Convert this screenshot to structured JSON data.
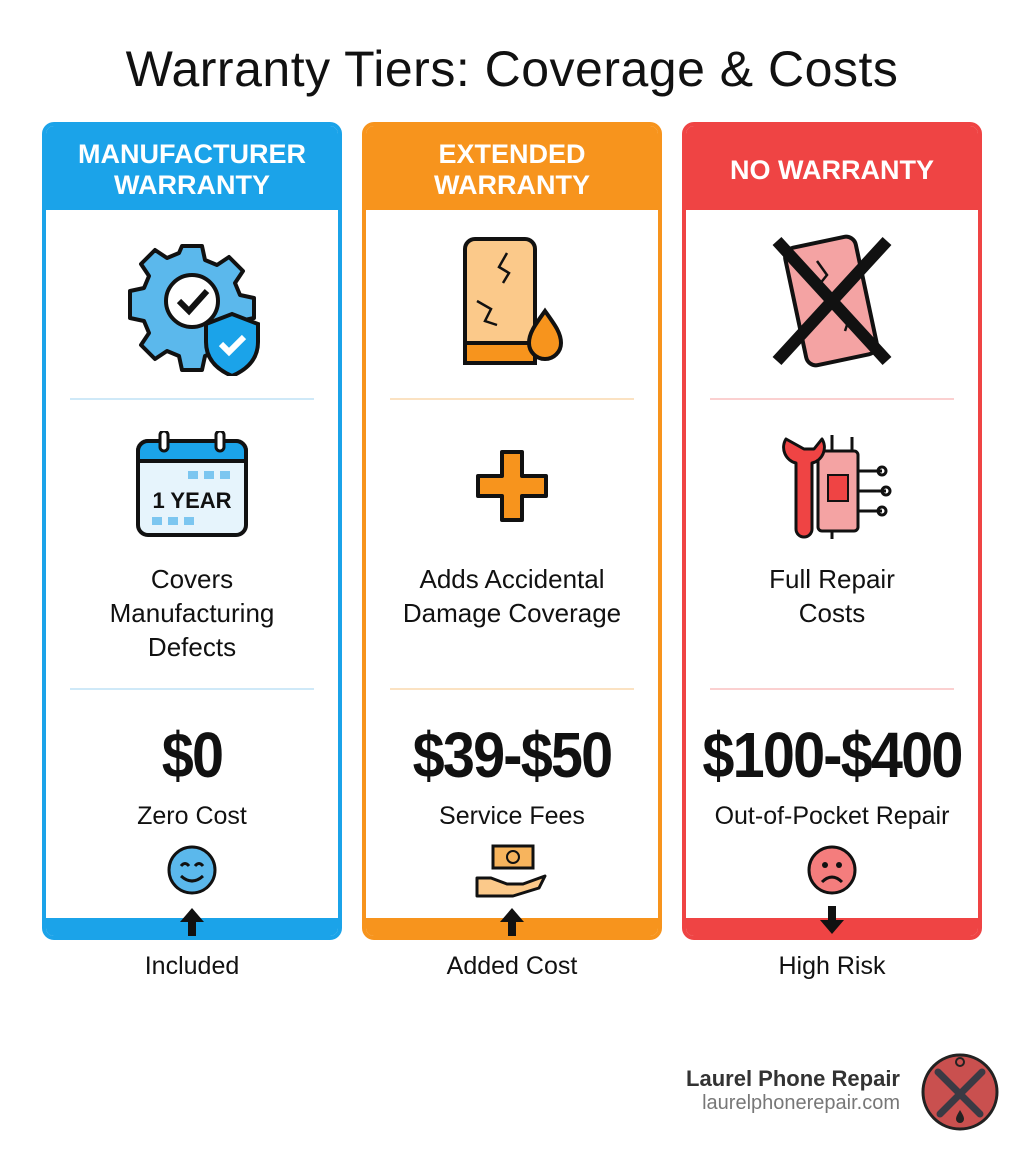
{
  "title": "Warranty Tiers: Coverage & Costs",
  "tiers": [
    {
      "header_line1": "MANUFACTURER",
      "header_line2": "WARRANTY",
      "color": "#1ba3e9",
      "icon": "gear-shield-check-icon",
      "badge_text": "1 YEAR",
      "desc_lines": [
        "Covers",
        "Manufacturing",
        "Defects"
      ],
      "price": "$0",
      "price_label": "Zero Cost",
      "face": "smiley-face-icon",
      "arrow": "up",
      "footer": "Included"
    },
    {
      "header_line1": "EXTENDED",
      "header_line2": "WARRANTY",
      "color": "#f7941d",
      "icon": "cracked-phone-water-drop-icon",
      "desc_lines": [
        "Adds Accidental",
        "Damage Coverage"
      ],
      "price": "$39-$50",
      "price_label": "Service Fees",
      "face": "hand-money-icon",
      "arrow": "up",
      "footer": "Added Cost"
    },
    {
      "header_line1": "NO WARRANTY",
      "header_line2": "",
      "color": "#ef4444",
      "icon": "crossed-out-phone-icon",
      "desc_lines": [
        "Full Repair",
        "Costs"
      ],
      "price": "$100-$400",
      "price_label": "Out-of-Pocket Repair",
      "face": "sad-face-icon",
      "arrow": "down",
      "footer": "High Risk"
    }
  ],
  "brand": {
    "name": "Laurel Phone Repair",
    "url": "laurelphonerepair.com"
  }
}
